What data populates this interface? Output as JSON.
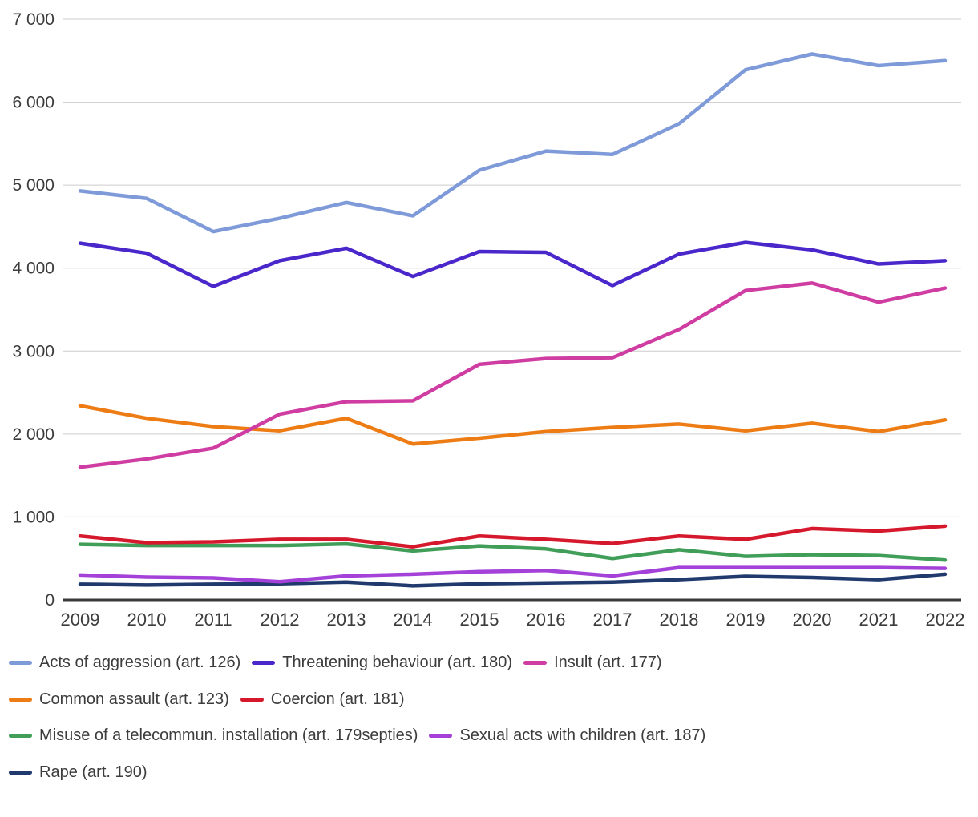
{
  "chart_data": {
    "type": "line",
    "x": [
      "2009",
      "2010",
      "2011",
      "2012",
      "2013",
      "2014",
      "2015",
      "2016",
      "2017",
      "2018",
      "2019",
      "2020",
      "2021",
      "2022"
    ],
    "y_tick_labels": [
      "0",
      "1 000",
      "2 000",
      "3 000",
      "4 000",
      "5 000",
      "6 000",
      "7 000"
    ],
    "ylim": [
      0,
      7000
    ],
    "ytick_step": 1000,
    "grid": true,
    "legend_position": "bottom",
    "series": [
      {
        "name": "Acts of aggression (art. 126)",
        "color": "#7e9ad9",
        "values": [
          4930,
          4840,
          4440,
          4600,
          4790,
          4630,
          5180,
          5410,
          5370,
          5740,
          6390,
          6580,
          6440,
          6500
        ]
      },
      {
        "name": "Threatening behaviour (art. 180)",
        "color": "#4a27cb",
        "values": [
          4300,
          4180,
          3780,
          4090,
          4240,
          3900,
          4200,
          4190,
          3790,
          4170,
          4310,
          4220,
          4050,
          4090
        ]
      },
      {
        "name": "Insult (art. 177)",
        "color": "#cf3da2",
        "values": [
          1600,
          1700,
          1830,
          2240,
          2390,
          2400,
          2840,
          2910,
          2920,
          3260,
          3730,
          3820,
          3590,
          3760
        ]
      },
      {
        "name": "Common assault (art. 123)",
        "color": "#ee7c14",
        "values": [
          2340,
          2190,
          2090,
          2040,
          2190,
          1880,
          1950,
          2030,
          2080,
          2120,
          2040,
          2130,
          2030,
          2170
        ]
      },
      {
        "name": "Coercion (art. 181)",
        "color": "#d6182d",
        "values": [
          770,
          690,
          700,
          730,
          730,
          640,
          770,
          730,
          680,
          770,
          730,
          860,
          830,
          890
        ]
      },
      {
        "name": "Misuse of a telecommun. installation (art. 179septies)",
        "color": "#409e58",
        "values": [
          670,
          655,
          655,
          655,
          675,
          590,
          650,
          615,
          500,
          605,
          525,
          545,
          535,
          480
        ]
      },
      {
        "name": "Sexual acts with children (art. 187)",
        "color": "#a341d8",
        "values": [
          300,
          275,
          265,
          220,
          290,
          310,
          340,
          355,
          290,
          390,
          390,
          390,
          390,
          380
        ]
      },
      {
        "name": "Rape (art. 190)",
        "color": "#213a6e",
        "values": [
          190,
          180,
          190,
          195,
          215,
          170,
          195,
          205,
          215,
          245,
          285,
          270,
          245,
          310
        ]
      }
    ],
    "style": {
      "grid_color": "#cccccc",
      "axis_color": "#3a3a3a",
      "tick_label_color": "#3c3c3c",
      "legend_text_color": "#3c3c3c"
    }
  }
}
